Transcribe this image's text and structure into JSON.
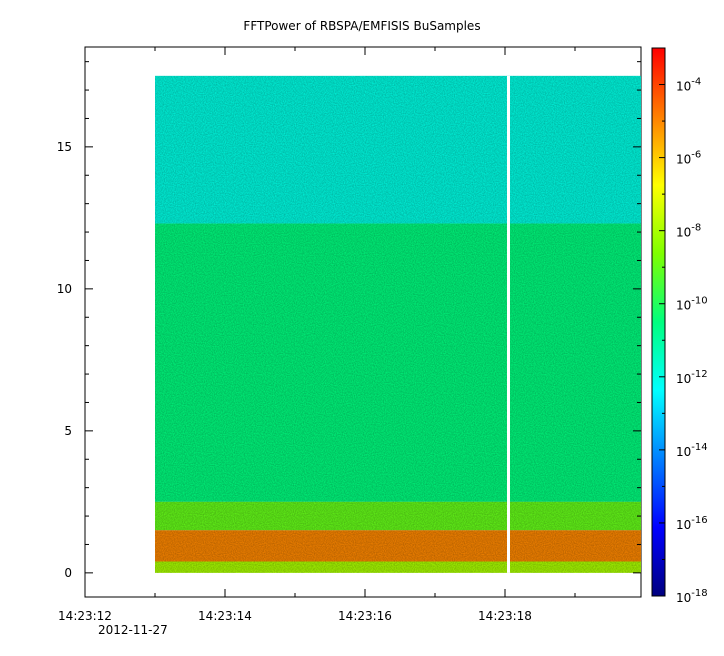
{
  "chart_data": {
    "type": "heatmap",
    "title": "FFTPower of RBSPA/EMFISIS  BuSamples",
    "xlabel": "",
    "ylabel": "",
    "x_tick_labels": [
      "14:23:12",
      "14:23:14",
      "14:23:16",
      "14:23:18"
    ],
    "x_tick_values_sec": [
      0,
      2,
      4,
      6
    ],
    "x_date_label": "2012-11-27",
    "xlim_sec": [
      0,
      8.0
    ],
    "y_tick_labels": [
      "0",
      "5",
      "10",
      "15"
    ],
    "y_tick_values": [
      0,
      5,
      10,
      15
    ],
    "ylim": [
      -0.85,
      18.45
    ],
    "data_x_range_sec": [
      1.0,
      8.0
    ],
    "data_y_range": [
      0,
      17.5
    ],
    "data_gap_sec": 6.05,
    "colorbar": {
      "scale": "log",
      "range": [
        1e-18,
        0.001
      ],
      "tick_labels": [
        {
          "base": "10",
          "exp": "-4"
        },
        {
          "base": "10",
          "exp": "-6"
        },
        {
          "base": "10",
          "exp": "-8"
        },
        {
          "base": "10",
          "exp": "-10"
        },
        {
          "base": "10",
          "exp": "-12"
        },
        {
          "base": "10",
          "exp": "-14"
        },
        {
          "base": "10",
          "exp": "-16"
        },
        {
          "base": "10",
          "exp": "-18"
        }
      ],
      "tick_exponents": [
        -4,
        -6,
        -8,
        -10,
        -12,
        -14,
        -16,
        -18
      ]
    },
    "bands": [
      {
        "y_range": [
          12.3,
          17.5
        ],
        "log_power": -12
      },
      {
        "y_range": [
          2.5,
          12.3
        ],
        "log_power": -10.5
      },
      {
        "y_range": [
          1.5,
          2.5
        ],
        "log_power": -9
      },
      {
        "y_range": [
          0.4,
          1.5
        ],
        "log_power": -5
      },
      {
        "y_range": [
          0,
          0.4
        ],
        "log_power": -8
      }
    ]
  }
}
